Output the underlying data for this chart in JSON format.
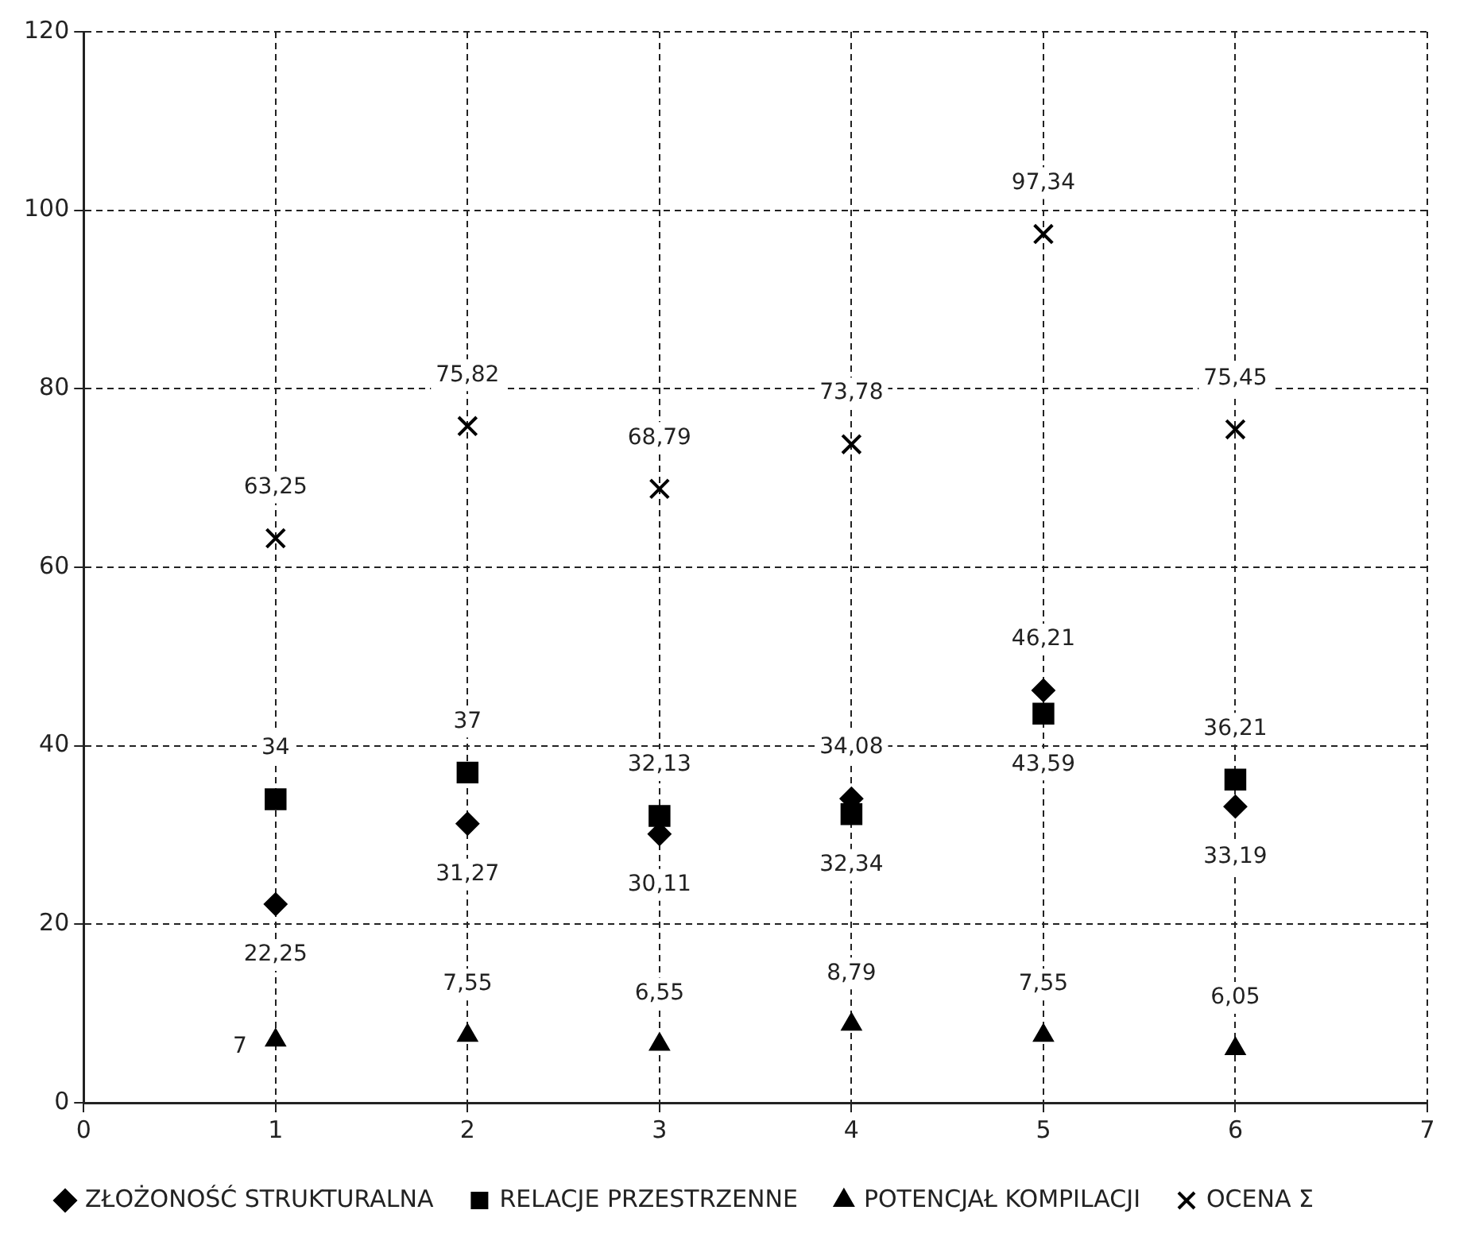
{
  "chart_data": {
    "type": "scatter",
    "x": [
      1,
      2,
      3,
      4,
      5,
      6
    ],
    "xlim": [
      0,
      7
    ],
    "xticks": [
      0,
      1,
      2,
      3,
      4,
      5,
      6,
      7
    ],
    "ylim": [
      0,
      120
    ],
    "yticks": [
      0,
      20,
      40,
      60,
      80,
      100,
      120
    ],
    "grid": true,
    "legend": "bottom",
    "series": [
      {
        "name": "ZŁOŻONOŚĆ STRUKTURALNA",
        "color": "#000000",
        "marker": "diamond",
        "values": [
          22.25,
          31.27,
          30.11,
          34.08,
          46.21,
          33.19
        ],
        "value_labels": [
          "22,25",
          "31,27",
          "30,11",
          "34,08",
          "46,21",
          "33,19"
        ]
      },
      {
        "name": "RELACJE PRZESTRZENNE",
        "color": "#000000",
        "marker": "square",
        "values": [
          34,
          37,
          32.13,
          32.34,
          43.59,
          36.21
        ],
        "value_labels": [
          "34",
          "37",
          "32,13",
          "32,34",
          "43,59",
          "36,21"
        ]
      },
      {
        "name": "POTENCJAŁ KOMPILACJI",
        "color": "#000000",
        "marker": "triangle",
        "values": [
          7,
          7.55,
          6.55,
          8.79,
          7.55,
          6.05
        ],
        "value_labels": [
          "7",
          "7,55",
          "6,55",
          "8,79",
          "7,55",
          "6,05"
        ]
      },
      {
        "name": "OCENA Σ",
        "color": "#000000",
        "marker": "cross",
        "values": [
          63.25,
          75.82,
          68.79,
          73.78,
          97.34,
          75.45
        ],
        "value_labels": [
          "63,25",
          "75,82",
          "68,79",
          "73,78",
          "97,34",
          "75,45"
        ]
      }
    ]
  }
}
